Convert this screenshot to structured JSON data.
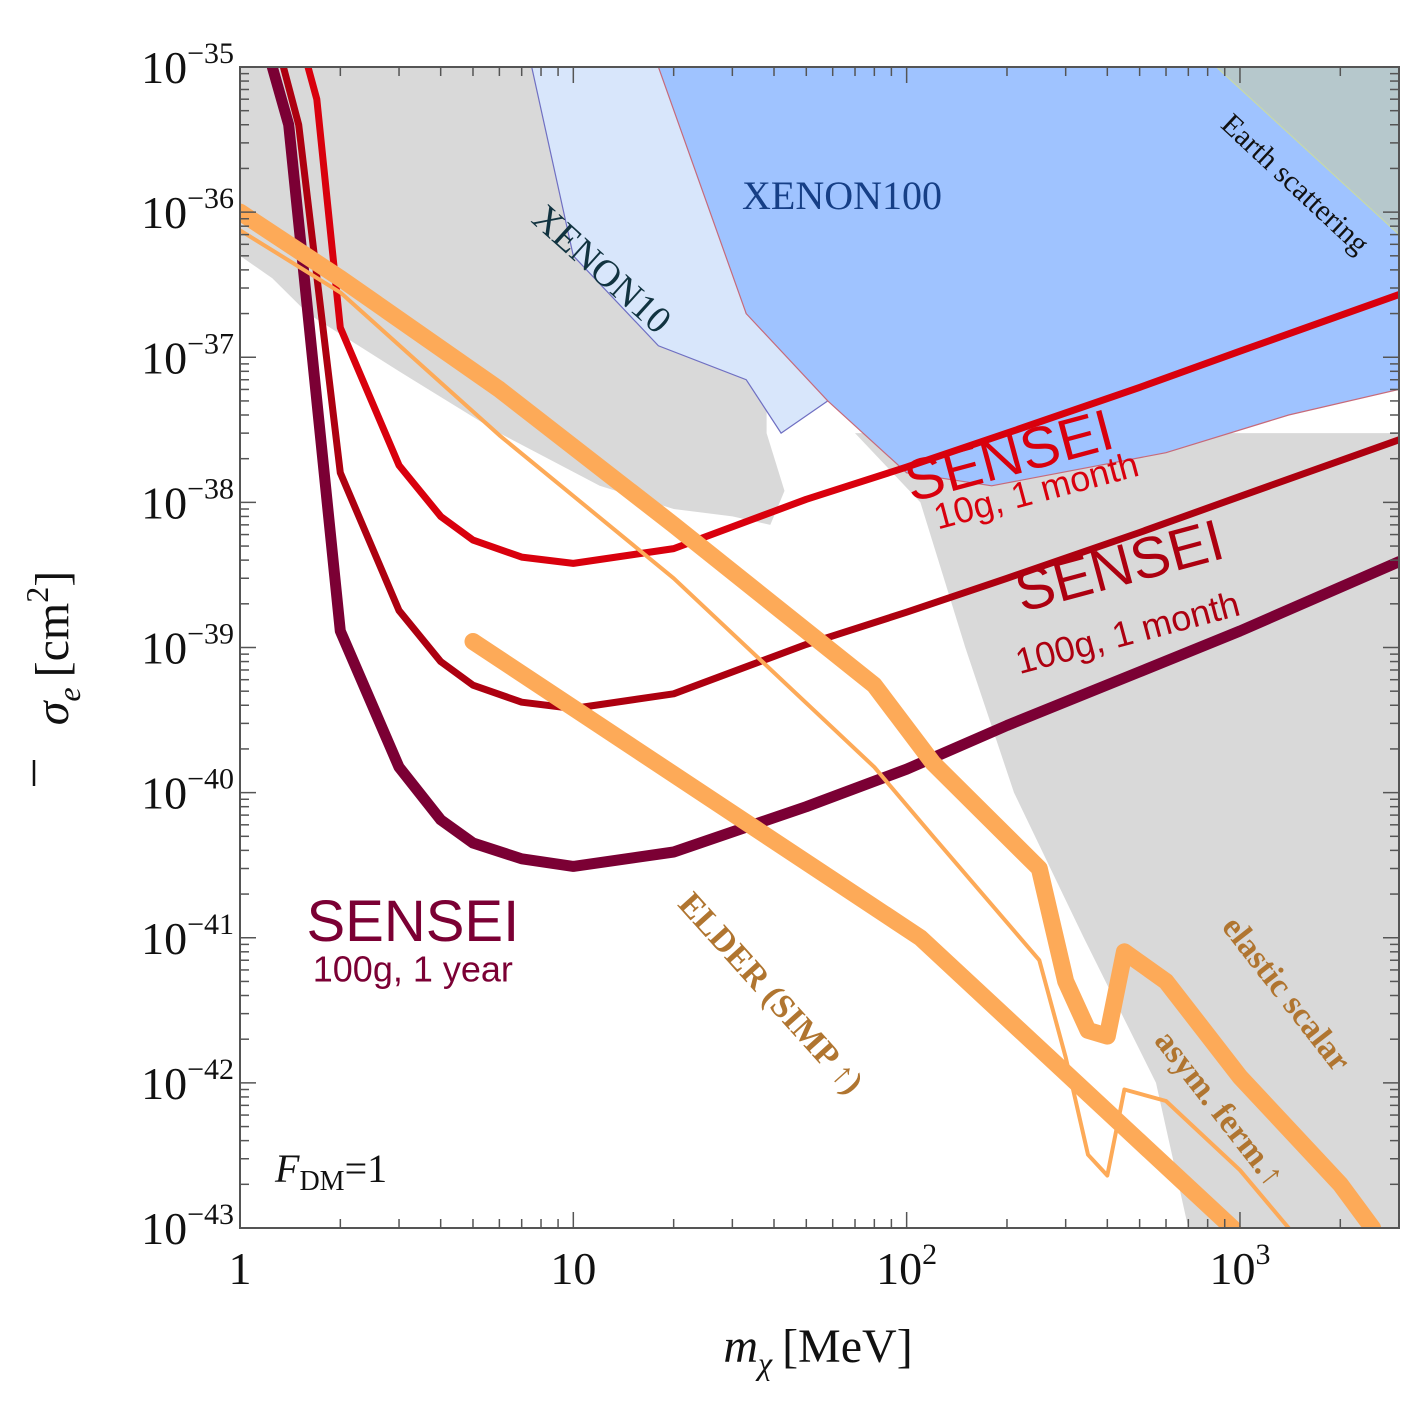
{
  "chart_data": {
    "type": "line",
    "x_scale": "log",
    "y_scale": "log",
    "xlim": [
      1,
      3000
    ],
    "ylim": [
      1e-43,
      1e-35
    ],
    "xlabel_main": "m",
    "xlabel_sub": "χ",
    "xlabel_unit": "[MeV]",
    "ylabel_main": "σ",
    "ylabel_sub": "e",
    "ylabel_unit": "[cm",
    "ylabel_sup": "2",
    "ylabel_close": "]",
    "x_ticks": [
      {
        "value": 1,
        "base": "1",
        "exp": ""
      },
      {
        "value": 10,
        "base": "10",
        "exp": ""
      },
      {
        "value": 100,
        "base": "10",
        "exp": "2"
      },
      {
        "value": 1000,
        "base": "10",
        "exp": "3"
      }
    ],
    "y_ticks": [
      {
        "value": 1e-35,
        "base": "10",
        "exp": "−35"
      },
      {
        "value": 1e-36,
        "base": "10",
        "exp": "−36"
      },
      {
        "value": 1e-37,
        "base": "10",
        "exp": "−37"
      },
      {
        "value": 1e-38,
        "base": "10",
        "exp": "−38"
      },
      {
        "value": 1e-39,
        "base": "10",
        "exp": "−39"
      },
      {
        "value": 1e-40,
        "base": "10",
        "exp": "−40"
      },
      {
        "value": 1e-41,
        "base": "10",
        "exp": "−41"
      },
      {
        "value": 1e-42,
        "base": "10",
        "exp": "−42"
      },
      {
        "value": 1e-43,
        "base": "10",
        "exp": "−43"
      }
    ],
    "regions": [
      {
        "id": "gray-left",
        "fill": "#d9d9d9",
        "points": [
          [
            1,
            1e-35
          ],
          [
            38,
            1e-35
          ],
          [
            38,
            3e-38
          ],
          [
            43,
            1.2e-38
          ],
          [
            39,
            7e-39
          ],
          [
            30,
            8e-39
          ],
          [
            20,
            9e-39
          ],
          [
            12,
            1.3e-38
          ],
          [
            6,
            3e-38
          ],
          [
            3,
            8e-38
          ],
          [
            1.6,
            2e-37
          ],
          [
            1.25,
            3.5e-37
          ],
          [
            1,
            5e-37
          ]
        ]
      },
      {
        "id": "gray-right",
        "fill": "#d9d9d9",
        "points": [
          [
            70,
            3e-38
          ],
          [
            3000,
            3e-38
          ],
          [
            3000,
            1e-43
          ],
          [
            700,
            1e-43
          ],
          [
            560,
            1e-42
          ],
          [
            340,
            1e-41
          ],
          [
            210,
            1e-40
          ],
          [
            150,
            1e-39
          ],
          [
            110,
            1e-38
          ],
          [
            70,
            3e-38
          ]
        ]
      },
      {
        "id": "xenon10",
        "fill": "#d8e6fb",
        "stroke": "#6f6fc2",
        "points": [
          [
            7.5,
            1e-35
          ],
          [
            23,
            1e-35
          ],
          [
            33,
            2e-37
          ],
          [
            42,
            1.2e-37
          ],
          [
            58,
            5e-38
          ],
          [
            42,
            3e-38
          ],
          [
            33,
            7e-38
          ],
          [
            18,
            1.2e-37
          ],
          [
            10,
            5e-37
          ],
          [
            7.5,
            1e-35
          ]
        ]
      },
      {
        "id": "xenon100",
        "fill": "#9fc3ff",
        "stroke": "#c76a7a",
        "points": [
          [
            18,
            1e-35
          ],
          [
            3000,
            1e-35
          ],
          [
            3000,
            6e-38
          ],
          [
            1400,
            4e-38
          ],
          [
            600,
            2.2e-38
          ],
          [
            180,
            1.3e-38
          ],
          [
            100,
            1.6e-38
          ],
          [
            58,
            5e-38
          ],
          [
            33,
            2e-37
          ],
          [
            18,
            1e-35
          ]
        ]
      },
      {
        "id": "earth-scattering",
        "fill": "#b6c8cc",
        "stroke": "#c7d9a8",
        "points": [
          [
            850,
            1e-35
          ],
          [
            3000,
            1e-35
          ],
          [
            3000,
            7e-37
          ],
          [
            850,
            1e-35
          ]
        ]
      }
    ],
    "series": [
      {
        "id": "sensei-10g-1month",
        "color": "#d9000d",
        "width": 7,
        "x": [
          1.6,
          1.7,
          2,
          3,
          4,
          5,
          7,
          10,
          20,
          50,
          100,
          200,
          500,
          1000,
          3000
        ],
        "y": [
          1e-35,
          6e-36,
          1.6e-37,
          1.8e-38,
          8e-39,
          5.5e-39,
          4.2e-39,
          3.8e-39,
          4.8e-39,
          1.05e-38,
          1.75e-38,
          3e-38,
          6.2e-38,
          1.1e-37,
          2.7e-37
        ]
      },
      {
        "id": "sensei-100g-1month",
        "color": "#ad0010",
        "width": 7,
        "x": [
          1.35,
          1.5,
          2,
          3,
          4,
          5,
          7,
          10,
          20,
          50,
          100,
          200,
          500,
          1000,
          3000
        ],
        "y": [
          1e-35,
          4e-36,
          1.6e-38,
          1.8e-39,
          8e-40,
          5.5e-40,
          4.2e-40,
          3.8e-40,
          4.8e-40,
          1.05e-39,
          1.75e-39,
          3e-39,
          6.2e-39,
          1.1e-38,
          2.7e-38
        ]
      },
      {
        "id": "sensei-100g-1year",
        "color": "#7b0034",
        "width": 11,
        "x": [
          1.25,
          1.4,
          2,
          3,
          4,
          5,
          7,
          10,
          20,
          50,
          100,
          200,
          500,
          1000,
          3000
        ],
        "y": [
          1e-35,
          4e-36,
          1.3e-39,
          1.5e-40,
          6.5e-41,
          4.5e-41,
          3.5e-41,
          3.1e-41,
          3.9e-41,
          8e-41,
          1.45e-40,
          2.9e-40,
          6.8e-40,
          1.3e-39,
          3.9e-39
        ]
      },
      {
        "id": "elastic-scalar",
        "color": "#fdaa58",
        "width": 17,
        "x": [
          1,
          2,
          6,
          20,
          80,
          120,
          250,
          300,
          350,
          400,
          450,
          600,
          1000,
          2000,
          2500
        ],
        "y": [
          1e-36,
          3.5e-37,
          6e-38,
          7e-39,
          5.5e-40,
          1.6e-40,
          3e-41,
          5e-42,
          2.3e-42,
          2.1e-42,
          8e-42,
          5e-42,
          1.1e-42,
          2e-43,
          1e-43
        ]
      },
      {
        "id": "asym-ferm",
        "color": "#fdaa58",
        "width": 4,
        "x": [
          1,
          2,
          6,
          20,
          80,
          120,
          250,
          300,
          350,
          400,
          450,
          600,
          1000,
          1400
        ],
        "y": [
          7.5e-37,
          2.8e-37,
          2.9e-38,
          3e-39,
          1.5e-40,
          5e-41,
          7e-42,
          1.5e-42,
          3.2e-43,
          2.3e-43,
          9e-43,
          7.5e-43,
          2.5e-43,
          1e-43
        ]
      },
      {
        "id": "elder",
        "color": "#fdaa58",
        "width": 17,
        "x": [
          5,
          110.0,
          950
        ],
        "y": [
          1.1e-39,
          1e-41,
          1e-43
        ]
      }
    ],
    "annotations": [
      {
        "id": "label-xenon10",
        "text": "XENON10",
        "x": 11.5,
        "y": 3.5e-37,
        "rotate": 42,
        "color": "#113340",
        "size": 38,
        "font": "serif"
      },
      {
        "id": "label-xenon100",
        "text": "XENON100",
        "x": 64,
        "y": 1.05e-36,
        "rotate": 0,
        "color": "#163f86",
        "size": 40,
        "font": "serif"
      },
      {
        "id": "label-earth",
        "text": "Earth scattering",
        "x": 1400,
        "y": 1.4e-36,
        "rotate": 43,
        "color": "#111111",
        "size": 30,
        "font": "serif"
      },
      {
        "id": "label-sensei-10g-title",
        "text": "SENSEI",
        "x": 210,
        "y": 1.55e-38,
        "rotate": -15,
        "color": "#d9000d",
        "size": 58,
        "font": "sans"
      },
      {
        "id": "label-sensei-10g-sub",
        "text": "10g, 1 month",
        "x": 250,
        "y": 1e-38,
        "rotate": -15,
        "color": "#d9000d",
        "size": 36,
        "font": "sans"
      },
      {
        "id": "label-sensei-100g-title",
        "text": "SENSEI",
        "x": 450,
        "y": 2.7e-39,
        "rotate": -15,
        "color": "#ad0010",
        "size": 58,
        "font": "sans"
      },
      {
        "id": "label-sensei-100g-sub",
        "text": "100g, 1 month",
        "x": 470,
        "y": 1.05e-39,
        "rotate": -15,
        "color": "#ad0010",
        "size": 36,
        "font": "sans"
      },
      {
        "id": "label-sensei-1yr-title",
        "text": "SENSEI",
        "x": 3.3,
        "y": 9.5e-42,
        "rotate": 0,
        "color": "#7b0034",
        "size": 58,
        "font": "sans"
      },
      {
        "id": "label-sensei-1yr-sub",
        "text": "100g, 1 year",
        "x": 3.3,
        "y": 5e-42,
        "rotate": 0,
        "color": "#7b0034",
        "size": 36,
        "font": "sans"
      },
      {
        "id": "label-elder",
        "text": "ELDER (SIMP ↑)",
        "x": 37,
        "y": 3.7e-42,
        "rotate": 48,
        "color": "#b07530",
        "size": 34,
        "font": "serif-bold"
      },
      {
        "id": "label-elastic",
        "text": "elastic scalar",
        "x": 1300,
        "y": 3.7e-42,
        "rotate": 52,
        "color": "#b07530",
        "size": 34,
        "font": "serif-bold"
      },
      {
        "id": "label-asym",
        "text": "asym. ferm.↑",
        "x": 820,
        "y": 6e-43,
        "rotate": 52,
        "color": "#b07530",
        "size": 34,
        "font": "serif-bold"
      }
    ],
    "fdm_label": {
      "main": "F",
      "sub": "DM",
      "rest": "=1"
    }
  }
}
